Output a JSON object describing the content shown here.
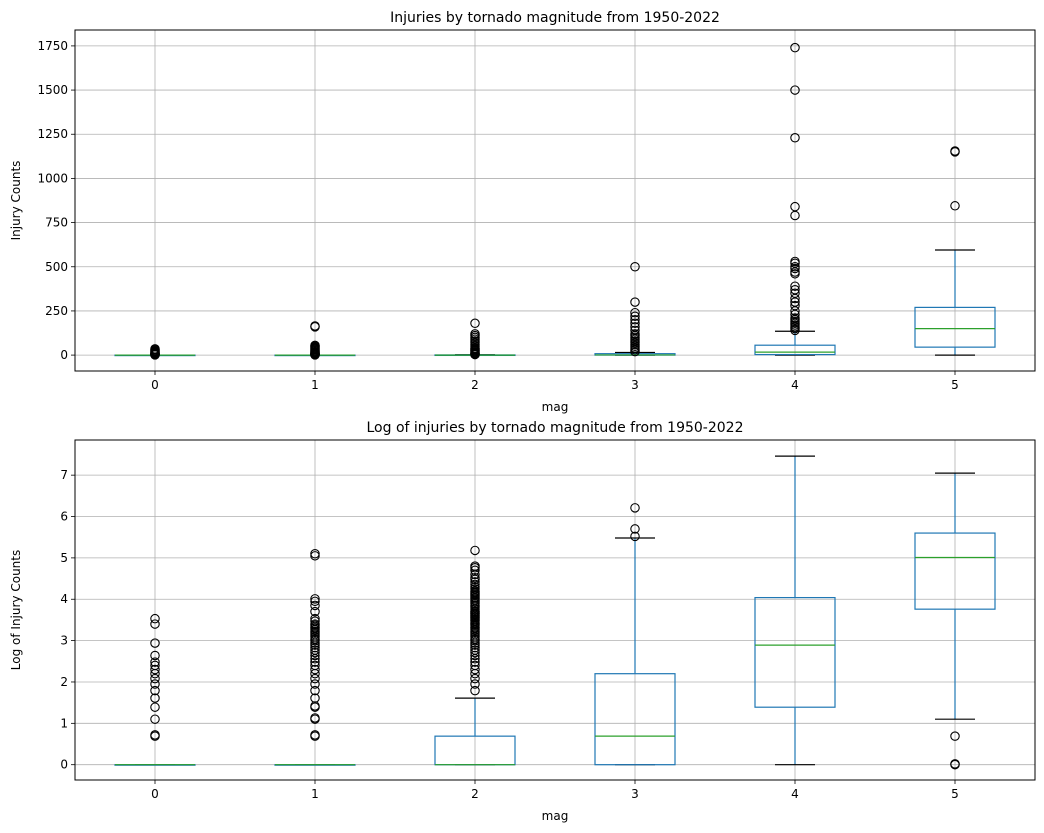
{
  "chart_data": [
    {
      "type": "box",
      "title": "Injuries by tornado magnitude from 1950-2022",
      "xlabel": "mag",
      "ylabel": "Injury Counts",
      "categories": [
        "0",
        "1",
        "2",
        "3",
        "4",
        "5"
      ],
      "ylim": [
        -90,
        1840
      ],
      "yticks": [
        0,
        250,
        500,
        750,
        1000,
        1250,
        1500,
        1750
      ],
      "grid": true,
      "boxes": [
        {
          "min": 0,
          "q1": 0,
          "median": 0,
          "q3": 0,
          "max": 0,
          "outliers": [
            1,
            2,
            3,
            4,
            5,
            6,
            8,
            10,
            12,
            15,
            18,
            22,
            25,
            30,
            35
          ]
        },
        {
          "min": 0,
          "q1": 0,
          "median": 0,
          "q3": 0,
          "max": 0,
          "outliers": [
            1,
            2,
            3,
            4,
            5,
            6,
            8,
            10,
            12,
            15,
            18,
            20,
            25,
            30,
            35,
            40,
            45,
            50,
            55,
            160,
            165
          ]
        },
        {
          "min": 0,
          "q1": 0,
          "median": 0,
          "q3": 1,
          "max": 2,
          "outliers": [
            3,
            5,
            8,
            10,
            15,
            20,
            25,
            30,
            35,
            40,
            50,
            60,
            70,
            80,
            90,
            100,
            110,
            120,
            180
          ]
        },
        {
          "min": 0,
          "q1": 0,
          "median": 1,
          "q3": 8,
          "max": 15,
          "outliers": [
            20,
            30,
            40,
            50,
            60,
            70,
            80,
            90,
            100,
            110,
            120,
            140,
            160,
            180,
            200,
            220,
            240,
            300,
            500
          ]
        },
        {
          "min": 0,
          "q1": 3,
          "median": 17,
          "q3": 56,
          "max": 135,
          "outliers": [
            140,
            150,
            160,
            170,
            180,
            190,
            200,
            210,
            230,
            250,
            280,
            300,
            320,
            350,
            370,
            390,
            460,
            470,
            490,
            500,
            520,
            530,
            790,
            840,
            1230,
            1500,
            1740
          ]
        },
        {
          "min": 0,
          "q1": 45,
          "median": 150,
          "q3": 270,
          "max": 595,
          "outliers": [
            845,
            1150,
            1155
          ]
        }
      ]
    },
    {
      "type": "box",
      "title": "Log of injuries by tornado magnitude from 1950-2022",
      "xlabel": "mag",
      "ylabel": "Log of Injury Counts",
      "categories": [
        "0",
        "1",
        "2",
        "3",
        "4",
        "5"
      ],
      "ylim": [
        -0.37,
        7.85
      ],
      "yticks": [
        0,
        1,
        2,
        3,
        4,
        5,
        6,
        7
      ],
      "grid": true,
      "boxes": [
        {
          "min": 0,
          "q1": 0,
          "median": 0,
          "q3": 0,
          "max": 0,
          "outliers": [
            0.69,
            0.72,
            1.1,
            1.39,
            1.61,
            1.79,
            1.95,
            2.08,
            2.2,
            2.3,
            2.4,
            2.48,
            2.64,
            2.94,
            3.4,
            3.53
          ]
        },
        {
          "min": 0,
          "q1": 0,
          "median": 0,
          "q3": 0,
          "max": 0,
          "outliers": [
            0.69,
            0.72,
            1.1,
            1.13,
            1.39,
            1.42,
            1.61,
            1.79,
            1.95,
            2.08,
            2.2,
            2.3,
            2.4,
            2.48,
            2.56,
            2.64,
            2.71,
            2.77,
            2.83,
            2.89,
            2.94,
            3.0,
            3.04,
            3.09,
            3.14,
            3.18,
            3.22,
            3.26,
            3.3,
            3.33,
            3.37,
            3.4,
            3.47,
            3.53,
            3.7,
            3.85,
            3.95,
            4.01,
            5.05,
            5.1
          ]
        },
        {
          "min": 0,
          "q1": 0,
          "median": 0,
          "q3": 0.69,
          "max": 1.61,
          "outliers": [
            1.79,
            1.95,
            2.08,
            2.2,
            2.3,
            2.4,
            2.48,
            2.56,
            2.64,
            2.71,
            2.77,
            2.83,
            2.89,
            2.94,
            3.0,
            3.04,
            3.09,
            3.14,
            3.18,
            3.22,
            3.26,
            3.3,
            3.33,
            3.37,
            3.4,
            3.43,
            3.47,
            3.5,
            3.53,
            3.56,
            3.58,
            3.61,
            3.64,
            3.66,
            3.69,
            3.71,
            3.76,
            3.81,
            3.85,
            3.89,
            3.93,
            3.97,
            4.01,
            4.04,
            4.08,
            4.11,
            4.14,
            4.17,
            4.2,
            4.25,
            4.3,
            4.36,
            4.42,
            4.48,
            4.52,
            4.6,
            4.7,
            4.76,
            4.8,
            5.18
          ]
        },
        {
          "min": 0,
          "q1": 0,
          "median": 0.69,
          "q3": 2.2,
          "max": 5.48,
          "outliers": [
            5.52,
            5.7,
            6.21
          ]
        },
        {
          "min": 0,
          "q1": 1.39,
          "median": 2.89,
          "q3": 4.04,
          "max": 7.46,
          "outliers": []
        },
        {
          "min": 1.1,
          "q1": 3.76,
          "median": 5.01,
          "q3": 5.6,
          "max": 7.05,
          "outliers": [
            0.69,
            0.0,
            0.02
          ]
        }
      ]
    }
  ]
}
